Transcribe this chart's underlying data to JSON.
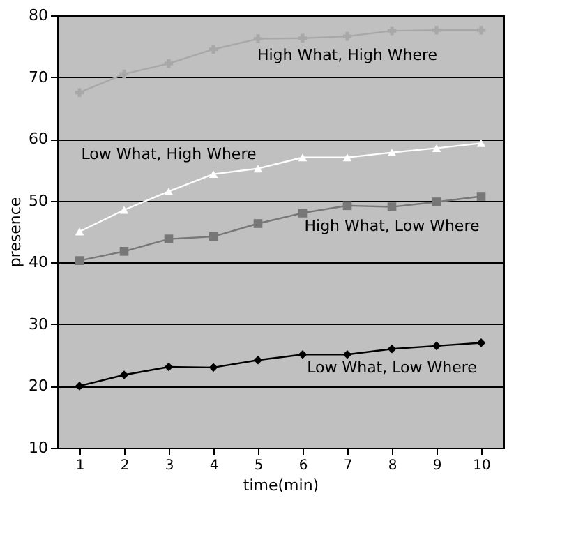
{
  "chart_data": {
    "type": "line",
    "xlabel": "time(min)",
    "ylabel": "presence",
    "categories": [
      "1",
      "2",
      "3",
      "4",
      "5",
      "6",
      "7",
      "8",
      "9",
      "10"
    ],
    "ylim": [
      10,
      80
    ],
    "yticks": [
      10,
      20,
      30,
      40,
      50,
      60,
      70,
      80
    ],
    "grid": "y",
    "legend": false,
    "line_style": "solid",
    "series": [
      {
        "name": "High What, High Where",
        "color": "#a8a8a8",
        "marker": "cross",
        "values": [
          67.5,
          70.5,
          72.2,
          74.5,
          76.2,
          76.3,
          76.6,
          77.5,
          77.6,
          77.6
        ]
      },
      {
        "name": "Low What, High Where",
        "color": "#ffffff",
        "marker": "triangle",
        "values": [
          45,
          48.5,
          51.5,
          54.3,
          55.2,
          57,
          57,
          57.8,
          58.5,
          59.3
        ]
      },
      {
        "name": "High What, Low Where",
        "color": "#777777",
        "marker": "square",
        "values": [
          40.3,
          41.8,
          43.8,
          44.2,
          46.3,
          48,
          49.2,
          49,
          49.8,
          50.7
        ]
      },
      {
        "name": "Low What, Low Where",
        "color": "#000000",
        "marker": "diamond",
        "values": [
          20,
          21.8,
          23.1,
          23,
          24.2,
          25.1,
          25.1,
          26,
          26.5,
          27
        ]
      }
    ]
  }
}
